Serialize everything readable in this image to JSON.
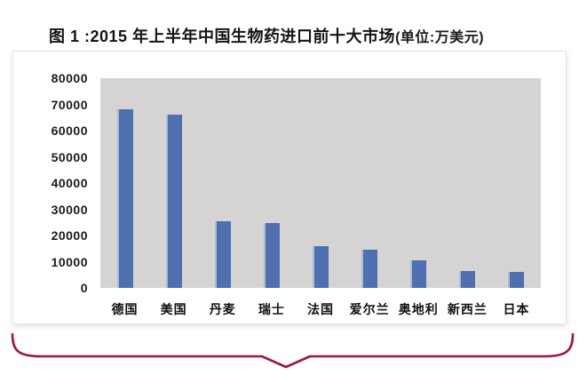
{
  "title": {
    "main": "图 1 :2015 年上半年中国生物药进口前十大市场",
    "unit": "(单位:万美元)"
  },
  "colors": {
    "bar": "#4e70b0",
    "bar_edge_highlight": "#a9bcd8",
    "plot_background": "#d6d4d2",
    "panel_background": "#ffffff",
    "text": "#141414",
    "brace": "#a31638"
  },
  "chart_data": {
    "type": "bar",
    "title": "图 1 :2015 年上半年中国生物药进口前十大市场(单位:万美元)",
    "categories": [
      "德国",
      "美国",
      "丹麦",
      "瑞士",
      "法国",
      "爱尔兰",
      "奥地利",
      "新西兰",
      "日本"
    ],
    "values": [
      68000,
      66000,
      25400,
      24600,
      16000,
      14500,
      10500,
      6500,
      6000
    ],
    "xlabel": "",
    "ylabel": "",
    "ylim": [
      0,
      80000
    ],
    "ytick_step": 10000,
    "yticks": [
      0,
      10000,
      20000,
      30000,
      40000,
      50000,
      60000,
      70000,
      80000
    ],
    "grid": false,
    "legend": false,
    "plot_bg": "#d6d4d2",
    "bar_color": "#4e70b0"
  },
  "decorations": {
    "underbrace": "red-curly-brace-pointing-down"
  }
}
